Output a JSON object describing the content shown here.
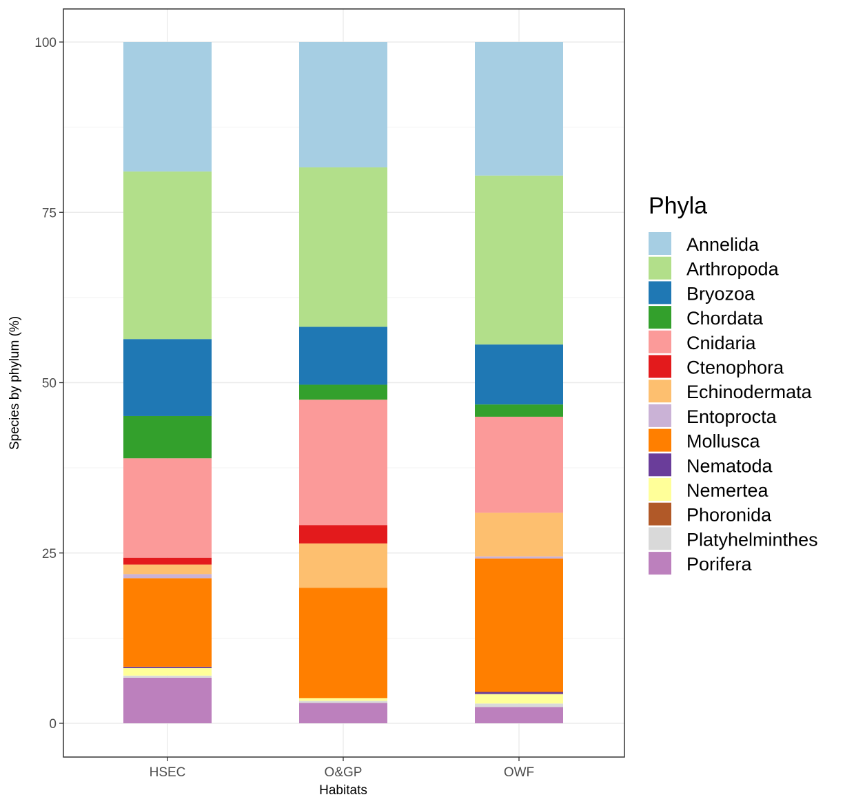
{
  "chart_data": {
    "type": "bar",
    "stacked": true,
    "categories": [
      "HSEC",
      "O&GP",
      "OWF"
    ],
    "xlabel": "Habitats",
    "ylabel": "Species by phylum (%)",
    "ylim": [
      -5,
      105
    ],
    "yticks": [
      0,
      25,
      50,
      75,
      100
    ],
    "grid": true,
    "legend": {
      "title": "Phyla",
      "position": "right"
    },
    "series": [
      {
        "name": "Annelida",
        "color": "#a6cee3",
        "values": [
          19.0,
          18.4,
          19.6
        ]
      },
      {
        "name": "Arthropoda",
        "color": "#b2df8a",
        "values": [
          24.6,
          23.4,
          24.8
        ]
      },
      {
        "name": "Bryozoa",
        "color": "#1f78b4",
        "values": [
          11.3,
          8.5,
          8.8
        ]
      },
      {
        "name": "Chordata",
        "color": "#33a02c",
        "values": [
          6.2,
          2.2,
          1.8
        ]
      },
      {
        "name": "Cnidaria",
        "color": "#fb9a99",
        "values": [
          14.6,
          18.4,
          14.1
        ]
      },
      {
        "name": "Ctenophora",
        "color": "#e31a1c",
        "values": [
          1.0,
          2.7,
          0.0
        ]
      },
      {
        "name": "Echinodermata",
        "color": "#fdbf6f",
        "values": [
          1.4,
          6.5,
          6.4
        ]
      },
      {
        "name": "Entoprocta",
        "color": "#cab2d6",
        "values": [
          0.6,
          0.0,
          0.3
        ]
      },
      {
        "name": "Mollusca",
        "color": "#ff7f00",
        "values": [
          13.0,
          16.2,
          19.6
        ]
      },
      {
        "name": "Nematoda",
        "color": "#6a3d9a",
        "values": [
          0.2,
          0.0,
          0.3
        ]
      },
      {
        "name": "Nemertea",
        "color": "#ffff99",
        "values": [
          1.1,
          0.4,
          1.4
        ]
      },
      {
        "name": "Phoronida",
        "color": "#b15928",
        "values": [
          0.0,
          0.0,
          0.0
        ]
      },
      {
        "name": "Platyhelminthes",
        "color": "#d9d9d9",
        "values": [
          0.3,
          0.3,
          0.5
        ]
      },
      {
        "name": "Porifera",
        "color": "#bc80bd",
        "values": [
          6.7,
          3.0,
          2.4
        ]
      }
    ]
  }
}
